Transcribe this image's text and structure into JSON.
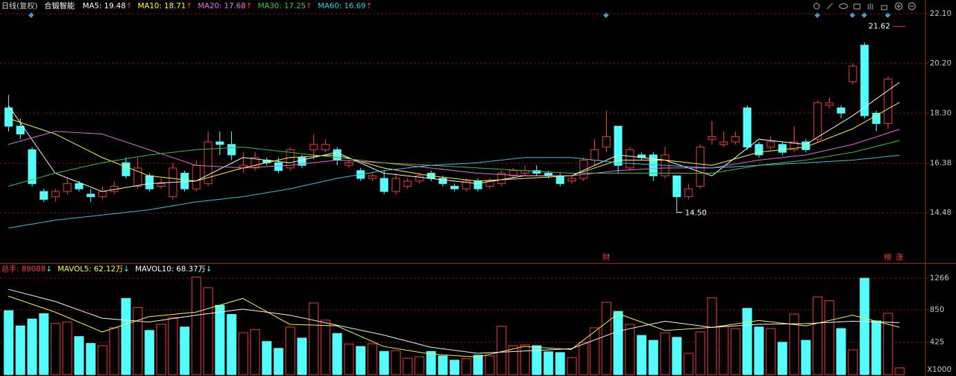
{
  "header": {
    "period": "日线(复权)",
    "name": "合锻智能"
  },
  "chart_data": [
    {
      "type": "candlestick",
      "up_color": "#ff3b3b",
      "down_color": "#54fcfc",
      "open": [
        18.5,
        17.8,
        16.9,
        15.3,
        15.1,
        15.3,
        15.6,
        15.2,
        15.1,
        15.3,
        16.4,
        15.5,
        15.9,
        15.5,
        15.1,
        16.0,
        15.4,
        15.6,
        17.2,
        17.1,
        16.2,
        16.2,
        16.5,
        16.4,
        16.2,
        16.6,
        16.9,
        16.9,
        16.9,
        16.3,
        16.1,
        15.8,
        15.8,
        15.3,
        15.5,
        15.7,
        16.0,
        15.8,
        15.5,
        15.4,
        15.7,
        15.5,
        15.6,
        15.9,
        16.0,
        16.1,
        16.0,
        15.9,
        15.7,
        15.8,
        16.5,
        17.0,
        17.8,
        16.2,
        16.7,
        16.7,
        15.9,
        15.9,
        15.1,
        15.5,
        17.3,
        17.1,
        17.2,
        18.5,
        17.1,
        17.0,
        17.1,
        16.9,
        17.2,
        17.3,
        18.6,
        18.5,
        19.5,
        20.9,
        18.3,
        17.9,
        null
      ],
      "high": [
        19.0,
        18.1,
        17.0,
        15.4,
        15.4,
        15.8,
        15.7,
        15.4,
        15.5,
        15.7,
        16.6,
        16.6,
        16.0,
        15.8,
        16.4,
        16.1,
        16.5,
        17.6,
        17.6,
        17.6,
        16.8,
        16.8,
        16.6,
        16.6,
        17.0,
        16.7,
        17.5,
        17.3,
        17.0,
        16.5,
        16.2,
        16.0,
        16.1,
        16.0,
        15.8,
        16.0,
        16.1,
        15.9,
        15.6,
        15.8,
        15.8,
        15.8,
        16.1,
        16.2,
        16.3,
        16.3,
        16.1,
        16.0,
        15.9,
        16.6,
        17.3,
        18.4,
        17.8,
        17.0,
        16.8,
        16.8,
        17.0,
        15.9,
        15.6,
        17.1,
        18.0,
        17.6,
        17.6,
        18.6,
        17.2,
        17.4,
        17.2,
        17.8,
        17.3,
        18.8,
        18.9,
        18.6,
        20.2,
        21.0,
        18.4,
        19.7,
        null
      ],
      "low": [
        17.6,
        17.3,
        15.5,
        14.9,
        14.9,
        15.2,
        15.3,
        14.9,
        15.0,
        15.2,
        15.8,
        15.4,
        15.3,
        15.4,
        15.0,
        15.3,
        15.3,
        15.5,
        16.7,
        16.5,
        16.0,
        16.1,
        16.3,
        16.0,
        16.1,
        16.2,
        16.5,
        16.8,
        16.3,
        16.2,
        15.7,
        15.7,
        15.2,
        15.2,
        15.4,
        15.6,
        15.7,
        15.5,
        15.3,
        15.3,
        15.3,
        15.4,
        15.5,
        15.8,
        15.9,
        15.9,
        15.8,
        15.5,
        15.6,
        15.7,
        16.3,
        16.8,
        16.0,
        16.1,
        16.5,
        15.7,
        15.8,
        14.5,
        15.0,
        15.4,
        17.1,
        17.0,
        17.1,
        16.9,
        16.6,
        16.9,
        16.7,
        16.8,
        16.8,
        17.2,
        18.5,
        18.1,
        19.4,
        18.1,
        17.6,
        17.7,
        null
      ],
      "close": [
        17.8,
        17.5,
        15.6,
        15.0,
        15.3,
        15.6,
        15.4,
        15.1,
        15.3,
        15.5,
        15.9,
        16.2,
        15.4,
        15.6,
        16.2,
        15.4,
        16.3,
        17.2,
        17.1,
        16.7,
        16.3,
        16.6,
        16.4,
        16.1,
        16.9,
        16.3,
        17.1,
        17.1,
        16.5,
        16.4,
        15.8,
        15.9,
        15.3,
        15.8,
        15.7,
        15.9,
        15.8,
        15.6,
        15.4,
        15.7,
        15.4,
        15.7,
        16.0,
        16.1,
        16.1,
        16.0,
        15.9,
        15.6,
        15.8,
        16.5,
        16.9,
        17.4,
        16.3,
        16.9,
        16.6,
        15.9,
        16.7,
        15.1,
        15.4,
        17.0,
        17.4,
        17.2,
        17.4,
        17.0,
        16.7,
        17.2,
        16.8,
        17.2,
        16.9,
        18.7,
        18.7,
        18.3,
        20.1,
        18.2,
        17.9,
        19.6,
        null
      ],
      "ylim": [
        12.56,
        22.63
      ],
      "yticks": [
        {
          "value": 22.1,
          "label": "22.10"
        },
        {
          "value": 20.2,
          "label": "20.20"
        },
        {
          "value": 18.3,
          "label": "18.30"
        },
        {
          "value": 16.38,
          "label": "16.38"
        },
        {
          "value": 14.48,
          "label": "14.48"
        }
      ],
      "grid": true,
      "series": [
        {
          "legend": "MA5: 19.48",
          "trend": "↑",
          "color": "#ffffff",
          "x": [
            0,
            4,
            8,
            12,
            16,
            20,
            24,
            28,
            32,
            36,
            40,
            44,
            48,
            52,
            56,
            60,
            64,
            68,
            72,
            76
          ],
          "values": [
            18.6,
            16.0,
            15.3,
            15.6,
            15.7,
            16.6,
            16.4,
            16.8,
            16.0,
            15.8,
            15.6,
            15.9,
            15.9,
            16.7,
            16.5,
            15.9,
            17.3,
            17.1,
            18.2,
            19.48
          ]
        },
        {
          "legend": "MA10: 18.71",
          "trend": "↑",
          "color": "#ffff3c",
          "x": [
            0,
            4,
            8,
            12,
            16,
            20,
            24,
            28,
            32,
            36,
            40,
            44,
            48,
            52,
            56,
            60,
            64,
            68,
            72,
            76
          ],
          "values": [
            18.1,
            17.5,
            16.6,
            15.9,
            15.7,
            16.2,
            16.6,
            16.7,
            16.2,
            15.9,
            15.7,
            15.8,
            15.9,
            16.5,
            16.5,
            16.3,
            16.8,
            17.0,
            17.7,
            18.71
          ]
        },
        {
          "legend": "MA20: 17.68",
          "trend": "↑",
          "color": "#e66ee6",
          "x": [
            0,
            4,
            8,
            12,
            16,
            20,
            24,
            28,
            32,
            36,
            40,
            44,
            48,
            52,
            56,
            60,
            64,
            68,
            72,
            76
          ],
          "values": [
            17.1,
            17.6,
            17.5,
            16.9,
            16.3,
            16.2,
            16.3,
            16.5,
            16.4,
            16.2,
            16.0,
            15.9,
            15.9,
            16.1,
            16.2,
            16.2,
            16.5,
            16.7,
            17.1,
            17.68
          ]
        },
        {
          "legend": "MA30: 17.25",
          "trend": "↑",
          "color": "#3cc83c",
          "x": [
            0,
            4,
            8,
            12,
            16,
            20,
            24,
            28,
            32,
            36,
            40,
            44,
            48,
            52,
            56,
            60,
            64,
            68,
            72,
            76
          ],
          "values": [
            15.5,
            16.0,
            16.4,
            16.7,
            16.9,
            17.0,
            16.8,
            16.6,
            16.4,
            16.3,
            16.2,
            16.1,
            16.0,
            16.0,
            16.0,
            16.0,
            16.3,
            16.5,
            16.8,
            17.25
          ]
        },
        {
          "legend": "MA60: 16.69",
          "trend": "↑",
          "color": "#3cc8e6",
          "x": [
            0,
            4,
            8,
            12,
            16,
            20,
            24,
            28,
            32,
            36,
            40,
            44,
            48,
            52,
            56,
            60,
            64,
            68,
            72,
            76
          ],
          "values": [
            13.9,
            14.2,
            14.4,
            14.6,
            14.9,
            15.1,
            15.4,
            15.8,
            16.1,
            16.3,
            16.4,
            16.6,
            16.6,
            16.4,
            16.3,
            16.2,
            16.3,
            16.4,
            16.5,
            16.69
          ]
        }
      ],
      "annotations": [
        {
          "index": 57,
          "value": 14.5,
          "label": "14.50"
        },
        {
          "index": 76,
          "value": 21.62,
          "label": "21.62"
        }
      ],
      "markers": [
        {
          "index": 51,
          "label": "财"
        },
        {
          "index": 75,
          "label": "榜"
        },
        {
          "index": 76,
          "label": "涨"
        }
      ]
    },
    {
      "type": "bar",
      "header": {
        "label": "总手: 89088",
        "trend": "↓"
      },
      "values": [
        840,
        640,
        730,
        800,
        670,
        690,
        500,
        410,
        380,
        615,
        1000,
        880,
        580,
        660,
        750,
        625,
        1280,
        1140,
        910,
        790,
        550,
        590,
        435,
        345,
        625,
        480,
        940,
        715,
        540,
        400,
        370,
        405,
        305,
        315,
        215,
        235,
        305,
        245,
        190,
        210,
        255,
        245,
        635,
        380,
        390,
        380,
        300,
        290,
        225,
        425,
        615,
        950,
        830,
        660,
        515,
        450,
        550,
        490,
        280,
        560,
        1010,
        635,
        605,
        870,
        625,
        605,
        425,
        795,
        450,
        1020,
        970,
        605,
        325,
        1265,
        705,
        805,
        89.088
      ],
      "ylim": [
        0,
        1446
      ],
      "yticks": [
        425,
        850,
        1266
      ],
      "unit": "X1000",
      "series": [
        {
          "legend": "MAVOL5: 62.12万",
          "trend": "↓",
          "color": "#ffff3c",
          "x": [
            0,
            4,
            8,
            12,
            16,
            20,
            24,
            28,
            32,
            36,
            40,
            44,
            48,
            52,
            56,
            60,
            64,
            68,
            72,
            76
          ],
          "values": [
            1030,
            820,
            560,
            760,
            820,
            1000,
            660,
            640,
            370,
            270,
            230,
            370,
            330,
            800,
            580,
            620,
            710,
            640,
            780,
            621.2
          ]
        },
        {
          "legend": "MAVOL10: 68.37万",
          "trend": "↓",
          "color": "#ffffff",
          "x": [
            0,
            4,
            8,
            12,
            16,
            20,
            24,
            28,
            32,
            36,
            40,
            44,
            48,
            52,
            56,
            60,
            64,
            68,
            72,
            76
          ],
          "values": [
            1120,
            960,
            740,
            690,
            780,
            860,
            780,
            650,
            520,
            360,
            280,
            310,
            340,
            570,
            700,
            620,
            660,
            670,
            700,
            683.7
          ]
        }
      ]
    }
  ]
}
